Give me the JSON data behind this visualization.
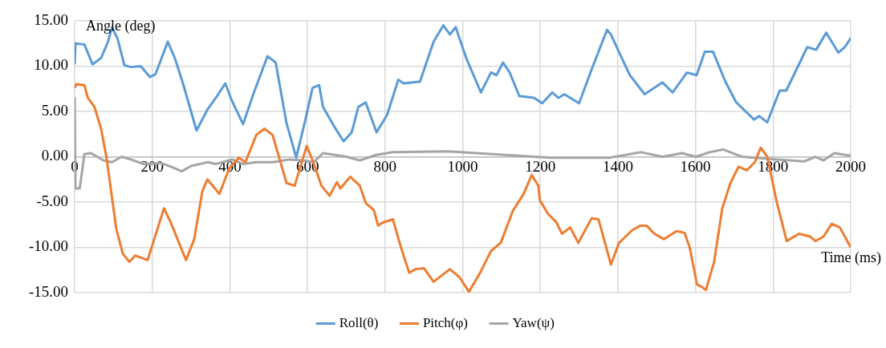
{
  "chart_data": {
    "type": "line",
    "xlabel": "Time (ms)",
    "ylabel": "Angle (deg)",
    "xlim": [
      0,
      2000
    ],
    "xticks": [
      0,
      200,
      400,
      600,
      800,
      1000,
      1200,
      1400,
      1600,
      1800,
      2000
    ],
    "ylim": [
      -15,
      15
    ],
    "yticks": [
      {
        "value": -15,
        "label": "-15.00"
      },
      {
        "value": -10,
        "label": "-10.00"
      },
      {
        "value": -5,
        "label": "-5.00"
      },
      {
        "value": 0,
        "label": "0.00"
      },
      {
        "value": 5,
        "label": "5.00"
      },
      {
        "value": 10,
        "label": "10.00"
      },
      {
        "value": 15,
        "label": "15.00"
      }
    ],
    "grid": true,
    "legend": "bottom",
    "series": [
      {
        "name": "Roll(θ)",
        "color": "#5b9bd5",
        "x": [
          0,
          2,
          25,
          46,
          68,
          86,
          96,
          110,
          128,
          145,
          170,
          194,
          208,
          240,
          258,
          279,
          314,
          342,
          367,
          388,
          405,
          434,
          462,
          497,
          518,
          546,
          571,
          594,
          613,
          630,
          640,
          668,
          693,
          714,
          731,
          750,
          778,
          805,
          834,
          848,
          890,
          925,
          950,
          967,
          982,
          1009,
          1047,
          1073,
          1087,
          1104,
          1121,
          1146,
          1184,
          1205,
          1231,
          1247,
          1262,
          1300,
          1332,
          1372,
          1382,
          1410,
          1431,
          1469,
          1515,
          1541,
          1578,
          1603,
          1624,
          1645,
          1677,
          1705,
          1751,
          1764,
          1785,
          1817,
          1834,
          1888,
          1911,
          1937,
          1968,
          1985,
          2000
        ],
        "values": [
          10.2,
          12.5,
          12.4,
          10.2,
          10.9,
          12.7,
          14.3,
          13.1,
          10.1,
          9.9,
          10.0,
          8.8,
          9.1,
          12.7,
          10.9,
          8.1,
          2.9,
          5.2,
          6.7,
          8.1,
          6.2,
          3.6,
          7.1,
          11.1,
          10.4,
          3.7,
          -0.1,
          4.0,
          7.6,
          7.9,
          5.5,
          3.4,
          1.7,
          2.7,
          5.5,
          6.0,
          2.7,
          4.6,
          8.5,
          8.1,
          8.3,
          12.7,
          14.5,
          13.5,
          14.3,
          10.9,
          7.1,
          9.3,
          9.0,
          10.4,
          9.3,
          6.7,
          6.5,
          5.9,
          7.1,
          6.5,
          6.9,
          5.9,
          9.6,
          14.0,
          13.5,
          10.9,
          9.0,
          6.9,
          8.2,
          7.1,
          9.3,
          9.0,
          11.6,
          11.6,
          8.3,
          6.0,
          4.1,
          4.5,
          3.8,
          7.3,
          7.3,
          12.1,
          11.8,
          13.7,
          11.5,
          12.1,
          13.1
        ]
      },
      {
        "name": "Pitch(φ)",
        "color": "#ed7d31",
        "x": [
          0,
          4,
          25,
          34,
          51,
          68,
          82,
          107,
          124,
          141,
          156,
          188,
          202,
          230,
          247,
          287,
          308,
          329,
          342,
          373,
          398,
          423,
          440,
          468,
          489,
          510,
          546,
          567,
          598,
          615,
          636,
          657,
          676,
          685,
          710,
          735,
          750,
          771,
          782,
          792,
          820,
          841,
          862,
          879,
          900,
          925,
          967,
          992,
          1016,
          1045,
          1073,
          1098,
          1129,
          1157,
          1178,
          1195,
          1199,
          1220,
          1241,
          1256,
          1277,
          1298,
          1332,
          1350,
          1382,
          1403,
          1437,
          1458,
          1474,
          1494,
          1519,
          1551,
          1572,
          1585,
          1604,
          1614,
          1627,
          1648,
          1669,
          1690,
          1711,
          1732,
          1753,
          1768,
          1785,
          1810,
          1835,
          1867,
          1895,
          1909,
          1930,
          1951,
          1972,
          2000
        ],
        "values": [
          7.6,
          8.0,
          7.9,
          6.5,
          5.5,
          3.1,
          -0.1,
          -7.9,
          -10.7,
          -11.6,
          -10.9,
          -11.4,
          -9.5,
          -5.7,
          -7.2,
          -11.4,
          -9.1,
          -3.8,
          -2.5,
          -4.1,
          -1.3,
          -0.1,
          -0.6,
          2.4,
          3.1,
          2.4,
          -2.9,
          -3.2,
          1.2,
          -0.6,
          -3.2,
          -4.3,
          -2.8,
          -3.5,
          -2.2,
          -3.2,
          -5.1,
          -5.9,
          -7.6,
          -7.3,
          -6.9,
          -10.0,
          -12.8,
          -12.4,
          -12.3,
          -13.8,
          -12.4,
          -13.3,
          -14.9,
          -12.8,
          -10.4,
          -9.5,
          -6.0,
          -4.1,
          -2.0,
          -3.2,
          -4.8,
          -6.3,
          -7.2,
          -8.5,
          -7.8,
          -9.5,
          -6.8,
          -6.9,
          -11.9,
          -9.5,
          -8.1,
          -7.6,
          -7.6,
          -8.5,
          -9.1,
          -8.2,
          -8.4,
          -10.0,
          -14.1,
          -14.3,
          -14.7,
          -11.6,
          -5.7,
          -2.9,
          -1.1,
          -1.5,
          -0.6,
          1.0,
          0.0,
          -5.1,
          -9.3,
          -8.5,
          -8.8,
          -9.3,
          -8.8,
          -7.4,
          -7.8,
          -10.0
        ]
      },
      {
        "name": "Yaw(ψ)",
        "color": "#a5a5a5",
        "x": [
          0,
          2,
          13,
          25,
          42,
          74,
          96,
          121,
          145,
          177,
          222,
          243,
          276,
          301,
          343,
          364,
          406,
          434,
          469,
          511,
          553,
          588,
          616,
          640,
          672,
          700,
          735,
          777,
          820,
          962,
          1228,
          1380,
          1460,
          1515,
          1565,
          1601,
          1636,
          1671,
          1720,
          1811,
          1881,
          1909,
          1930,
          1958,
          2000
        ],
        "values": [
          6.6,
          -3.5,
          -3.5,
          0.3,
          0.4,
          -0.4,
          -0.6,
          0.0,
          -0.3,
          -0.8,
          -0.7,
          -1.0,
          -1.6,
          -1.0,
          -0.6,
          -0.8,
          -0.3,
          -0.8,
          -0.6,
          -0.6,
          -0.3,
          -0.4,
          -0.6,
          0.4,
          0.2,
          0.0,
          -0.4,
          0.2,
          0.5,
          0.6,
          -0.1,
          -0.1,
          0.5,
          0.0,
          0.4,
          0.0,
          0.5,
          0.8,
          0.0,
          -0.3,
          -0.5,
          0.0,
          -0.4,
          0.4,
          0.1
        ]
      }
    ]
  }
}
